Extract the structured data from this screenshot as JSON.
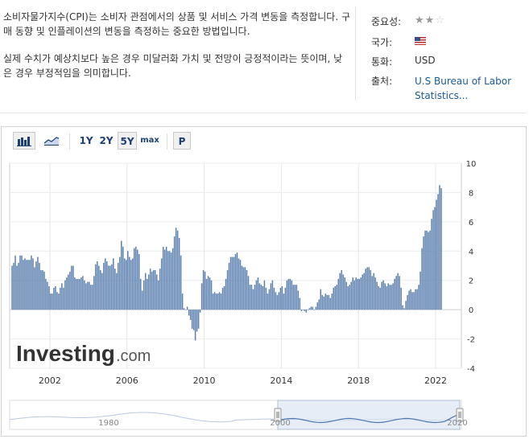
{
  "description": {
    "paragraph1": "소비자물가지수(CPI)는 소비자 관점에서의 상품 및 서비스 가격 변동을 측정합니다. 구매 동향 및 인플레이션의 변동을 측정하는 중요한 방법입니다.",
    "paragraph2": "실제 수치가 예상치보다 높은 경우 미달러화 가치 및 전망이 긍정적이라는 뜻이며, 낮은 경우 부정적임을 의미합니다."
  },
  "info": {
    "importance_label": "중요성:",
    "importance_stars": 2,
    "importance_max": 3,
    "country_label": "국가:",
    "country_icon": "us-flag-icon",
    "currency_label": "통화:",
    "currency_value": "USD",
    "source_label": "출처:",
    "source_line1": "U.S Bureau of Labor",
    "source_line2": "Statistics..."
  },
  "toolbar": {
    "bar_icon": "bar-chart-icon",
    "line_icon": "line-chart-icon",
    "ranges": [
      "1Y",
      "2Y",
      "5Y",
      "max"
    ],
    "selected_range": "5Y",
    "p_label": "P"
  },
  "brand": {
    "name": "Investing",
    "suffix": ".com"
  },
  "navigator": {
    "labels": [
      "1980",
      "2000",
      "2020"
    ],
    "window_label": "2000"
  },
  "colors": {
    "bar": "#5b7fae",
    "accent": "#1c3f77",
    "source_link": "#1a5a96"
  },
  "chart_data": {
    "type": "bar",
    "title": "",
    "xlabel": "",
    "ylabel": "",
    "ylim": [
      -4,
      10
    ],
    "yticks": [
      -4,
      -2,
      0,
      2,
      4,
      6,
      8,
      10
    ],
    "xticks": [
      "2002",
      "2006",
      "2010",
      "2014",
      "2018",
      "2022"
    ],
    "x_start": "2000-01",
    "x_end": "2022-04",
    "values": [
      3.0,
      3.2,
      3.7,
      3.0,
      3.2,
      3.7,
      3.7,
      3.4,
      3.5,
      3.4,
      3.4,
      3.4,
      3.7,
      3.5,
      2.9,
      3.3,
      3.6,
      3.2,
      2.7,
      2.7,
      2.6,
      2.1,
      1.9,
      1.6,
      1.1,
      1.1,
      1.5,
      1.6,
      1.2,
      1.1,
      1.5,
      1.8,
      1.5,
      2.0,
      2.2,
      2.4,
      2.6,
      3.0,
      3.0,
      2.2,
      2.1,
      2.1,
      2.1,
      2.2,
      2.3,
      2.0,
      1.8,
      1.9,
      1.9,
      1.7,
      1.7,
      2.3,
      3.1,
      3.3,
      3.0,
      2.7,
      2.5,
      3.2,
      3.5,
      3.3,
      3.0,
      3.0,
      3.1,
      3.5,
      2.8,
      2.5,
      3.2,
      3.6,
      4.7,
      4.3,
      3.5,
      3.4,
      4.0,
      3.6,
      3.4,
      3.5,
      4.2,
      4.3,
      4.1,
      3.8,
      2.1,
      1.3,
      2.0,
      2.5,
      2.1,
      2.4,
      2.8,
      2.6,
      2.7,
      2.7,
      2.4,
      2.0,
      2.8,
      3.5,
      4.3,
      4.1,
      4.3,
      4.0,
      4.0,
      3.9,
      4.2,
      5.0,
      5.6,
      5.4,
      4.9,
      3.7,
      1.1,
      0.1,
      0.0,
      0.2,
      -0.4,
      -0.7,
      -1.3,
      -1.4,
      -2.1,
      -1.5,
      -1.3,
      -0.2,
      1.8,
      2.7,
      2.6,
      2.1,
      2.3,
      2.2,
      2.0,
      1.1,
      1.2,
      1.1,
      1.1,
      1.2,
      1.1,
      1.5,
      1.6,
      2.1,
      2.7,
      3.2,
      3.6,
      3.6,
      3.6,
      3.8,
      3.9,
      3.5,
      3.4,
      3.0,
      2.9,
      2.9,
      2.7,
      2.3,
      1.7,
      1.7,
      1.4,
      1.7,
      2.0,
      2.2,
      1.8,
      1.7,
      1.6,
      2.0,
      1.5,
      1.1,
      1.4,
      1.8,
      2.0,
      1.5,
      1.2,
      1.0,
      1.2,
      1.5,
      1.6,
      1.1,
      1.5,
      2.0,
      2.1,
      2.1,
      2.0,
      1.7,
      1.7,
      1.7,
      1.3,
      0.8,
      -0.1,
      0.0,
      -0.1,
      -0.2,
      0.0,
      0.1,
      0.2,
      0.2,
      0.0,
      0.2,
      0.5,
      0.7,
      1.4,
      1.0,
      0.9,
      1.1,
      1.0,
      1.0,
      0.8,
      1.1,
      1.5,
      1.6,
      1.7,
      2.1,
      2.5,
      2.7,
      2.4,
      2.2,
      1.9,
      1.6,
      1.7,
      1.9,
      2.2,
      2.0,
      2.2,
      2.1,
      2.1,
      2.2,
      2.4,
      2.5,
      2.8,
      2.9,
      2.9,
      2.7,
      2.3,
      2.5,
      2.2,
      1.9,
      1.6,
      1.5,
      1.9,
      2.0,
      1.8,
      1.6,
      1.8,
      1.7,
      1.7,
      1.8,
      2.1,
      2.3,
      2.5,
      2.3,
      1.5,
      0.3,
      0.1,
      0.6,
      1.0,
      1.3,
      1.4,
      1.2,
      1.2,
      1.4,
      1.4,
      1.7,
      2.6,
      4.2,
      5.0,
      5.4,
      5.4,
      5.3,
      5.4,
      6.2,
      6.8,
      7.0,
      7.5,
      7.9,
      8.5,
      8.3
    ]
  }
}
